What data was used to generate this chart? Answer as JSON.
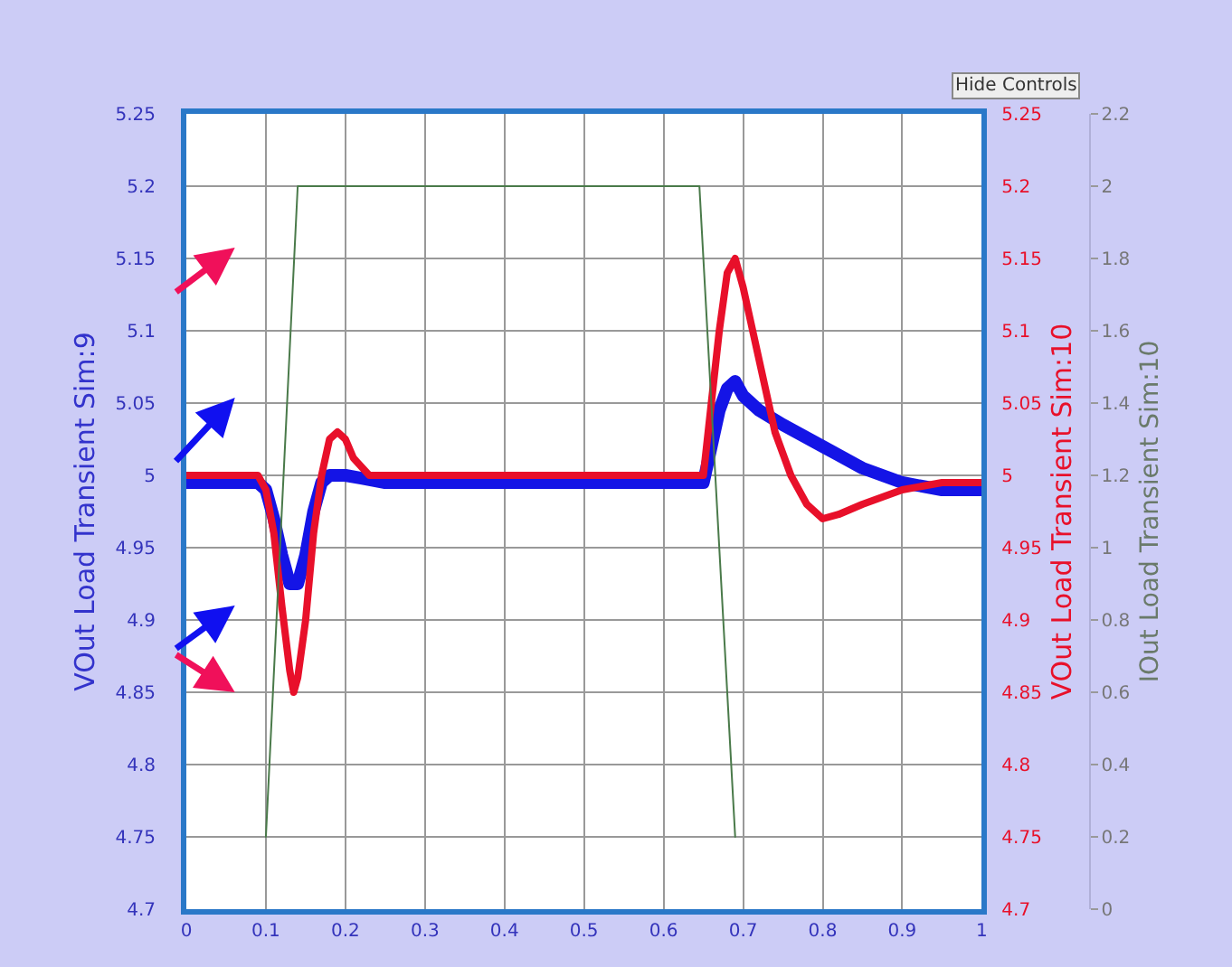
{
  "chart_data": {
    "type": "line",
    "ylabel": "VOut Load Transient Sim:9",
    "y2label": "VOut Load Transient Sim:10",
    "y3label": "IOut Load Transient Sim:10",
    "annotations": [
      "Hide Controls"
    ],
    "series": [
      {
        "name": null,
        "color": "#1414e6",
        "axis": "y",
        "x": [
          0,
          0.09,
          0.1,
          0.11,
          0.12,
          0.13,
          0.14,
          0.15,
          0.16,
          0.17,
          0.18,
          0.19,
          0.2,
          0.22,
          0.25,
          0.3,
          0.4,
          0.5,
          0.6,
          0.65,
          0.66,
          0.67,
          0.68,
          0.69,
          0.7,
          0.72,
          0.75,
          0.8,
          0.85,
          0.9,
          0.95,
          1
        ],
        "values": [
          4.995,
          4.995,
          4.99,
          4.97,
          4.945,
          4.925,
          4.925,
          4.945,
          4.975,
          4.995,
          5.0,
          5.0,
          5.0,
          4.998,
          4.995,
          4.995,
          4.995,
          4.995,
          4.995,
          4.995,
          5.02,
          5.045,
          5.06,
          5.065,
          5.055,
          5.045,
          5.035,
          5.02,
          5.005,
          4.995,
          4.99,
          4.99
        ]
      },
      {
        "name": null,
        "color": "#e8102a",
        "axis": "y2",
        "x": [
          0,
          0.09,
          0.1,
          0.11,
          0.12,
          0.13,
          0.135,
          0.14,
          0.15,
          0.16,
          0.17,
          0.18,
          0.19,
          0.2,
          0.21,
          0.23,
          0.25,
          0.3,
          0.4,
          0.5,
          0.6,
          0.65,
          0.66,
          0.67,
          0.68,
          0.69,
          0.7,
          0.72,
          0.74,
          0.76,
          0.78,
          0.8,
          0.82,
          0.85,
          0.9,
          0.95,
          1
        ],
        "values": [
          5.0,
          5.0,
          4.99,
          4.96,
          4.91,
          4.865,
          4.85,
          4.86,
          4.9,
          4.96,
          5.0,
          5.025,
          5.03,
          5.025,
          5.012,
          5.0,
          5.0,
          5.0,
          5.0,
          5.0,
          5.0,
          5.0,
          5.05,
          5.1,
          5.14,
          5.15,
          5.13,
          5.08,
          5.03,
          5.0,
          4.98,
          4.97,
          4.973,
          4.98,
          4.99,
          4.995,
          4.995
        ]
      },
      {
        "name": null,
        "color": "#4a7a4a",
        "axis": "y3",
        "x": [
          0.1,
          0.14,
          0.645,
          0.69
        ],
        "values": [
          0.2,
          2,
          2,
          0.2
        ]
      }
    ],
    "xlim": [
      0,
      1
    ],
    "xticks": [
      0,
      0.1,
      0.2,
      0.3,
      0.4,
      0.5,
      0.6,
      0.7,
      0.8,
      0.9,
      1
    ],
    "ylim": [
      4.7,
      5.25
    ],
    "yticks": [
      4.7,
      4.75,
      4.8,
      4.85,
      4.9,
      4.95,
      5,
      5.05,
      5.1,
      5.15,
      5.2,
      5.25
    ],
    "y2lim": [
      4.7,
      5.25
    ],
    "y2ticks": [
      4.7,
      4.75,
      4.8,
      4.85,
      4.9,
      4.95,
      5,
      5.05,
      5.1,
      5.15,
      5.2,
      5.25
    ],
    "y3lim": [
      0,
      2.2
    ],
    "y3ticks": [
      0,
      0.2,
      0.4,
      0.6,
      0.8,
      1,
      1.2,
      1.4,
      1.6,
      1.8,
      2,
      2.2
    ],
    "grid": true,
    "marker": "none",
    "line_style": "solid"
  }
}
